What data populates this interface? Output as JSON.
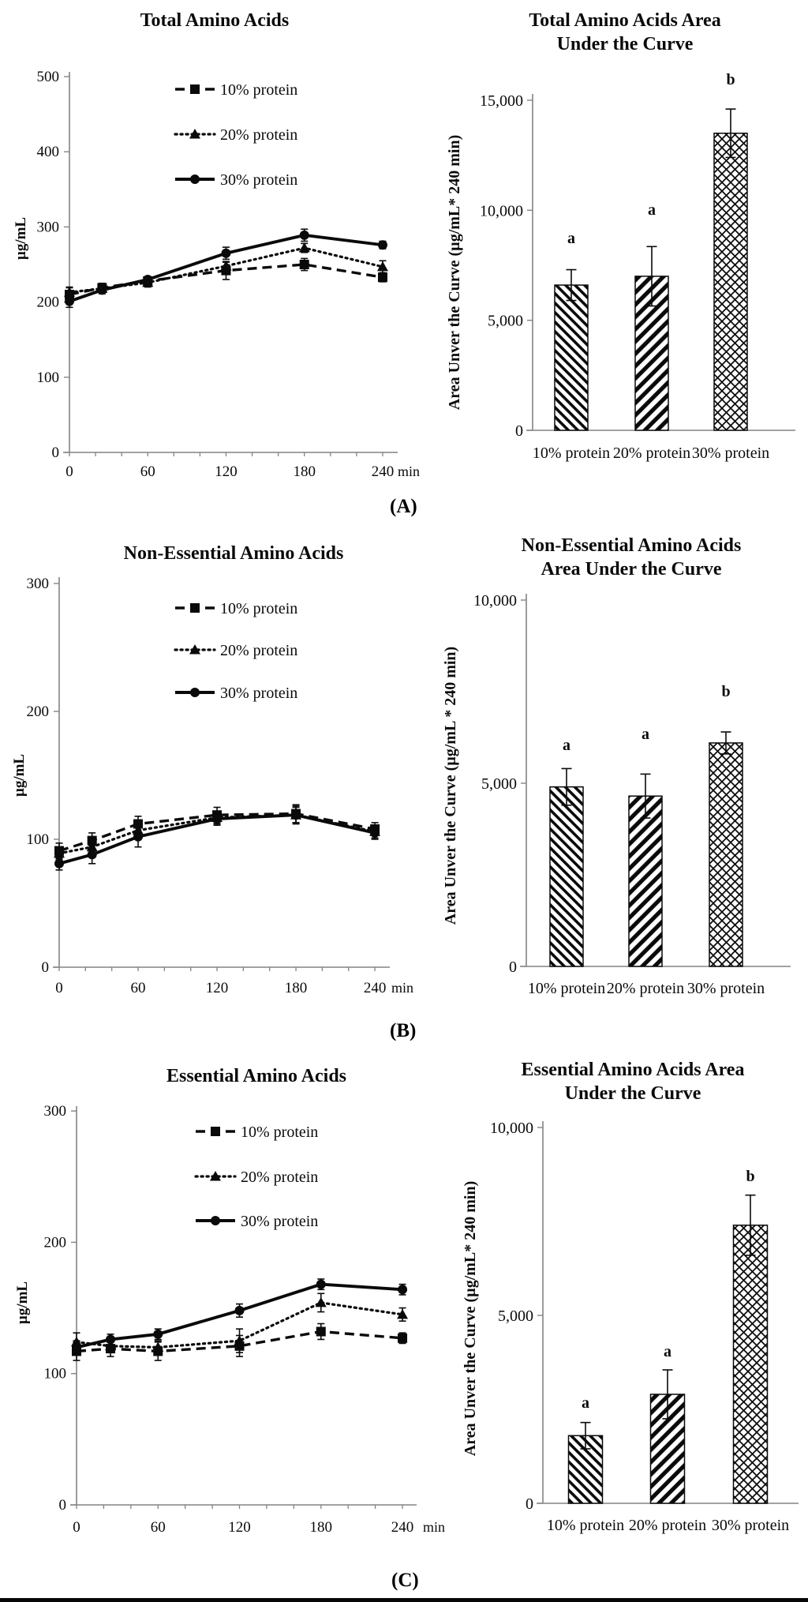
{
  "figure": {
    "labels": {
      "A": "(A)",
      "B": "(B)",
      "C": "(C)"
    }
  },
  "chart_data": [
    {
      "type": "line",
      "title": "Total Amino Acids",
      "ylabel": "µg/mL",
      "x_unit": "min",
      "x": [
        0,
        25,
        60,
        120,
        180,
        240
      ],
      "xticks": [
        0,
        60,
        120,
        180,
        240
      ],
      "x_minor_step": 20,
      "ylim": [
        0,
        500
      ],
      "yticks": [
        0,
        100,
        200,
        300,
        400,
        500
      ],
      "grid": false,
      "legend_position": "upper-center-inside",
      "series": [
        {
          "name": "10% protein",
          "marker": "square",
          "line": "dashed",
          "values": [
            210,
            219,
            228,
            242,
            250,
            233
          ],
          "errors": [
            10,
            6,
            5,
            12,
            8,
            6
          ]
        },
        {
          "name": "20% protein",
          "marker": "triangle",
          "line": "dotted",
          "values": [
            213,
            218,
            226,
            248,
            272,
            247
          ],
          "errors": [
            6,
            5,
            6,
            5,
            6,
            8
          ]
        },
        {
          "name": "30% protein",
          "marker": "circle",
          "line": "solid",
          "values": [
            201,
            216,
            230,
            265,
            289,
            276
          ],
          "errors": [
            8,
            5,
            4,
            8,
            8,
            5
          ]
        }
      ]
    },
    {
      "type": "bar",
      "title_lines": [
        "Total Amino Acids Area",
        "Under the Curve"
      ],
      "ylabel": "Area Unver the Curve (µg/mL* 240 min)",
      "categories": [
        "10% protein",
        "20% protein",
        "30% protein"
      ],
      "values": [
        6600,
        7000,
        13500
      ],
      "errors": [
        700,
        1350,
        1100
      ],
      "sig_letters": [
        "a",
        "a",
        "b"
      ],
      "ylim": [
        0,
        15000
      ],
      "yticks": [
        0,
        5000,
        10000,
        15000
      ],
      "ytick_labels": [
        "0",
        "5,000",
        "10,000",
        "15,000"
      ],
      "patterns": [
        "diag-down",
        "diag-up",
        "diamond"
      ]
    },
    {
      "type": "line",
      "title": "Non-Essential Amino Acids",
      "ylabel": "µg/mL",
      "x_unit": "min",
      "x": [
        0,
        25,
        60,
        120,
        180,
        240
      ],
      "xticks": [
        0,
        60,
        120,
        180,
        240
      ],
      "x_minor_step": 20,
      "ylim": [
        0,
        300
      ],
      "yticks": [
        0,
        100,
        200,
        300
      ],
      "grid": false,
      "legend_position": "upper-center-inside",
      "series": [
        {
          "name": "10% protein",
          "marker": "square",
          "line": "dashed",
          "values": [
            91,
            99,
            112,
            119,
            120,
            108
          ],
          "errors": [
            6,
            6,
            6,
            6,
            7,
            5
          ]
        },
        {
          "name": "20% protein",
          "marker": "triangle",
          "line": "dotted",
          "values": [
            89,
            94,
            107,
            117,
            119,
            106
          ],
          "errors": [
            5,
            5,
            6,
            5,
            6,
            5
          ]
        },
        {
          "name": "30% protein",
          "marker": "circle",
          "line": "solid",
          "values": [
            81,
            88,
            102,
            116,
            119,
            105
          ],
          "errors": [
            5,
            7,
            8,
            5,
            7,
            5
          ]
        }
      ]
    },
    {
      "type": "bar",
      "title_lines": [
        "Non-Essential Amino Acids",
        "Area Under the Curve"
      ],
      "ylabel": "Area Unver the Curve (µg/mL * 240 min)",
      "categories": [
        "10% protein",
        "20% protein",
        "30% protein"
      ],
      "values": [
        4900,
        4650,
        6100
      ],
      "errors": [
        500,
        600,
        300
      ],
      "sig_letters": [
        "a",
        "a",
        "b"
      ],
      "ylim": [
        0,
        10000
      ],
      "yticks": [
        0,
        5000,
        10000
      ],
      "ytick_labels": [
        "0",
        "5,000",
        "10,000"
      ],
      "patterns": [
        "diag-down",
        "diag-up",
        "diamond"
      ]
    },
    {
      "type": "line",
      "title": "Essential Amino Acids",
      "ylabel": "µg/mL",
      "x_unit": "min",
      "x": [
        0,
        25,
        60,
        120,
        180,
        240
      ],
      "xticks": [
        0,
        60,
        120,
        180,
        240
      ],
      "x_minor_step": 20,
      "ylim": [
        0,
        300
      ],
      "yticks": [
        0,
        100,
        200,
        300
      ],
      "grid": false,
      "legend_position": "upper-center-inside",
      "series": [
        {
          "name": "10% protein",
          "marker": "square",
          "line": "dashed",
          "values": [
            117,
            119,
            117,
            121,
            132,
            127
          ],
          "errors": [
            7,
            6,
            7,
            8,
            6,
            4
          ]
        },
        {
          "name": "20% protein",
          "marker": "triangle",
          "line": "dotted",
          "values": [
            124,
            121,
            120,
            125,
            154,
            145
          ],
          "errors": [
            7,
            5,
            5,
            9,
            7,
            5
          ]
        },
        {
          "name": "30% protein",
          "marker": "circle",
          "line": "solid",
          "values": [
            120,
            126,
            130,
            148,
            168,
            164
          ],
          "errors": [
            5,
            4,
            4,
            5,
            4,
            4
          ]
        }
      ]
    },
    {
      "type": "bar",
      "title_lines": [
        "Essential Amino Acids Area",
        "Under the Curve"
      ],
      "ylabel": "Area Unver the Curve (µg/mL* 240 min)",
      "categories": [
        "10% protein",
        "20% protein",
        "30% protein"
      ],
      "values": [
        1800,
        2900,
        7400
      ],
      "errors": [
        350,
        650,
        800
      ],
      "sig_letters": [
        "a",
        "a",
        "b"
      ],
      "ylim": [
        0,
        10000
      ],
      "yticks": [
        0,
        5000,
        10000
      ],
      "ytick_labels": [
        "0",
        "5,000",
        "10,000"
      ],
      "patterns": [
        "diag-down",
        "diag-up",
        "diamond"
      ]
    }
  ]
}
